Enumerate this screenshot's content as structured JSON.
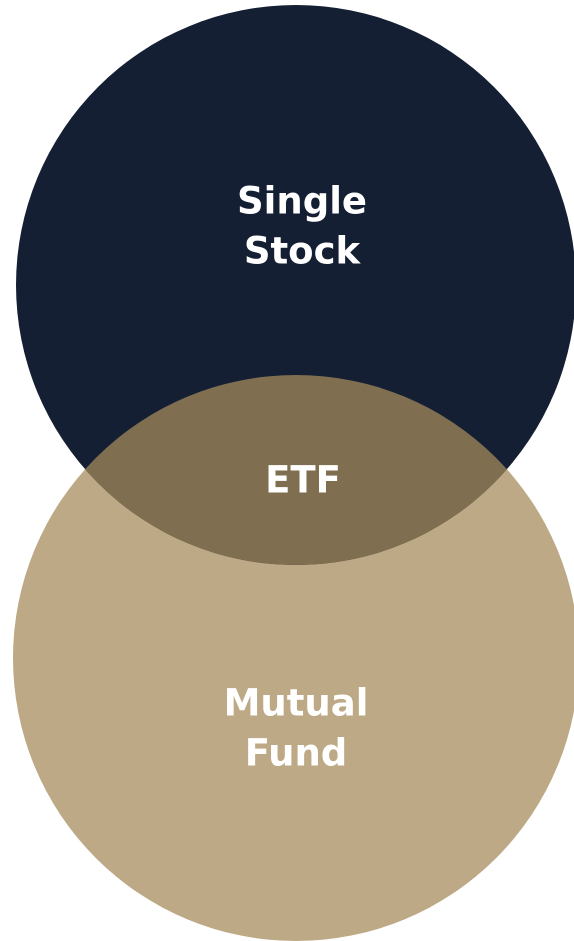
{
  "nodes": [
    {
      "label": [
        "Single",
        "Stock"
      ]
    },
    {
      "label": [
        "ETF"
      ]
    },
    {
      "label": [
        "Mutual",
        "Fund"
      ]
    }
  ]
}
